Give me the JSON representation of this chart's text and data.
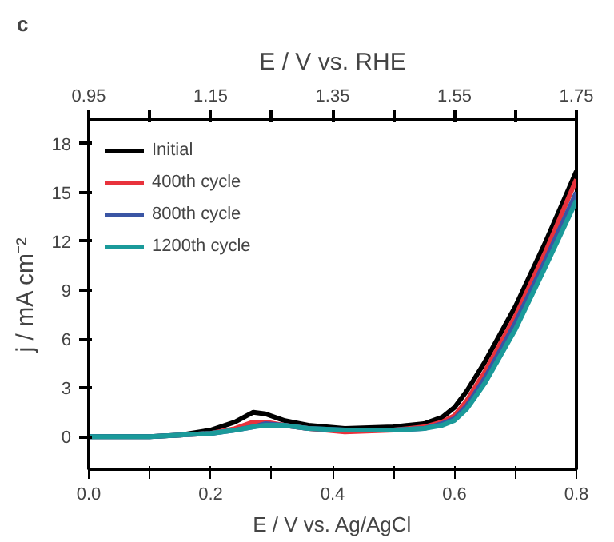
{
  "chart_data": {
    "type": "line",
    "xlabel": "E / V vs. Ag/AgCl",
    "ylabel": "j / mA cm⁻²",
    "x2label": "E / V vs. RHE",
    "annotations": [
      "c"
    ],
    "x": [
      0,
      0.1,
      0.15,
      0.2,
      0.24,
      0.27,
      0.29,
      0.32,
      0.36,
      0.42,
      0.5,
      0.55,
      0.58,
      0.6,
      0.62,
      0.65,
      0.7,
      0.75,
      0.8
    ],
    "series": [
      {
        "name": "Initial",
        "color": "#000000",
        "values": [
          0,
          0,
          0.1,
          0.4,
          0.9,
          1.5,
          1.4,
          1.0,
          0.7,
          0.5,
          0.6,
          0.8,
          1.2,
          1.8,
          2.8,
          4.6,
          8.0,
          12.0,
          16.3
        ]
      },
      {
        "name": "400th cycle",
        "color": "#e8323c",
        "values": [
          null,
          null,
          0.1,
          0.2,
          0.5,
          0.9,
          0.9,
          0.7,
          0.5,
          0.3,
          0.4,
          0.6,
          0.9,
          1.3,
          2.2,
          4.0,
          7.4,
          11.4,
          15.8
        ]
      },
      {
        "name": "800th cycle",
        "color": "#3a55a4",
        "values": [
          0,
          0,
          0.1,
          0.2,
          0.4,
          0.6,
          0.8,
          0.7,
          0.5,
          0.4,
          0.4,
          0.5,
          0.8,
          1.1,
          1.9,
          3.6,
          7.0,
          10.9,
          15.0
        ]
      },
      {
        "name": "1200th cycle",
        "color": "#1a9a9a",
        "values": [
          0,
          0,
          0.1,
          0.2,
          0.4,
          0.6,
          0.7,
          0.7,
          0.5,
          0.4,
          0.4,
          0.5,
          0.7,
          1.0,
          1.7,
          3.3,
          6.6,
          10.5,
          14.5
        ]
      }
    ],
    "xlim": [
      0,
      0.8
    ],
    "xticks": [
      {
        "value": 0,
        "label": "0.0"
      },
      {
        "value": 0.1,
        "label": null
      },
      0.2,
      {
        "value": 0.3,
        "label": null
      },
      0.4,
      {
        "value": 0.5,
        "label": null
      },
      0.6,
      {
        "value": 0.7,
        "label": null
      },
      0.8
    ],
    "x2lim": [
      0.95,
      1.75
    ],
    "x2ticks": [
      0.95,
      {
        "value": 1.05,
        "label": null
      },
      1.15,
      {
        "value": 1.25,
        "label": null
      },
      1.35,
      {
        "value": 1.45,
        "label": null
      },
      1.55,
      {
        "value": 1.65,
        "label": null
      },
      1.75
    ],
    "ylim": [
      -2,
      19.5
    ],
    "yticks": [
      0,
      3,
      6,
      9,
      12,
      15,
      18
    ],
    "grid": false,
    "legend": "top left",
    "marker": "none",
    "line_style": "solid"
  }
}
